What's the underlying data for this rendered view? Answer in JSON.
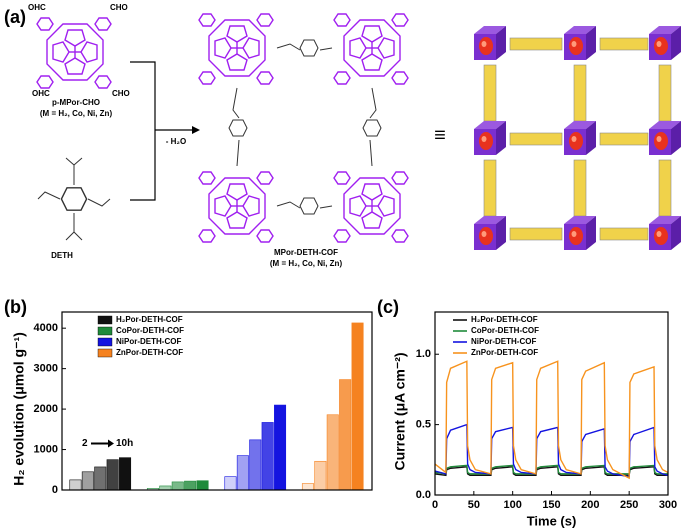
{
  "panel_a": {
    "label": "(a)",
    "monomer_name": "p-MPor-CHO",
    "monomer_metals": "(M = H₂, Co, Ni, Zn)",
    "aldehyde_1": "OHC",
    "aldehyde_2": "CHO",
    "aldehyde_3": "OHC",
    "aldehyde_4": "CHO",
    "linker_name": "DETH",
    "reaction": "- H₂O",
    "product_name": "MPor-DETH-COF",
    "product_metals": "(M = H₂, Co, Ni, Zn)",
    "equivalence": "≡"
  },
  "chart_data": [
    {
      "type": "bar",
      "panel_label": "(b)",
      "y_label": "H₂ evolution (μmol g⁻¹)",
      "ylim": [
        0,
        4400
      ],
      "yticks": [
        0,
        1000,
        2000,
        3000,
        4000
      ],
      "annotation_start": "2",
      "annotation_end": "10h",
      "series": [
        {
          "name": "H₂Por-DETH-COF",
          "color": "#111111",
          "values": [
            250,
            450,
            570,
            750,
            800
          ]
        },
        {
          "name": "CoPor-DETH-COF",
          "color": "#1f8a3a",
          "values": [
            40,
            100,
            200,
            220,
            230
          ]
        },
        {
          "name": "NiPor-DETH-COF",
          "color": "#1414e0",
          "values": [
            330,
            850,
            1240,
            1670,
            2100
          ]
        },
        {
          "name": "ZnPor-DETH-COF",
          "color": "#f58220",
          "values": [
            160,
            710,
            1860,
            2730,
            4130
          ]
        }
      ]
    },
    {
      "type": "line",
      "panel_label": "(c)",
      "x_label": "Time (s)",
      "y_label": "Current (μA cm⁻²)",
      "xlim": [
        0,
        300
      ],
      "xticks": [
        0,
        50,
        100,
        150,
        200,
        250,
        300
      ],
      "ylim": [
        0,
        1.3
      ],
      "yticks": [
        {
          "value": 0,
          "label": "0.0"
        },
        0.5,
        {
          "value": 1,
          "label": "1.0"
        }
      ],
      "x": [
        0,
        14,
        15,
        20,
        41,
        42,
        45,
        52,
        72,
        73,
        78,
        100,
        101,
        104,
        111,
        130,
        131,
        136,
        158,
        159,
        162,
        169,
        188,
        189,
        194,
        218,
        219,
        222,
        229,
        250,
        251,
        256,
        282,
        283,
        286,
        293,
        300
      ],
      "series": [
        {
          "name": "H₂Por-DETH-COF",
          "color": "#111111",
          "values": [
            0.15,
            0.14,
            0.18,
            0.19,
            0.2,
            0.15,
            0.14,
            0.14,
            0.14,
            0.18,
            0.19,
            0.2,
            0.15,
            0.14,
            0.14,
            0.14,
            0.18,
            0.19,
            0.2,
            0.15,
            0.14,
            0.14,
            0.14,
            0.18,
            0.19,
            0.2,
            0.15,
            0.14,
            0.14,
            0.14,
            0.18,
            0.19,
            0.2,
            0.15,
            0.14,
            0.14,
            0.14
          ]
        },
        {
          "name": "CoPor-DETH-COF",
          "color": "#1f8a3a",
          "values": [
            0.16,
            0.15,
            0.19,
            0.2,
            0.21,
            0.16,
            0.15,
            0.15,
            0.15,
            0.19,
            0.2,
            0.21,
            0.16,
            0.15,
            0.15,
            0.15,
            0.19,
            0.2,
            0.21,
            0.16,
            0.15,
            0.15,
            0.15,
            0.19,
            0.2,
            0.21,
            0.16,
            0.15,
            0.15,
            0.15,
            0.19,
            0.2,
            0.21,
            0.16,
            0.15,
            0.15,
            0.15
          ]
        },
        {
          "name": "NiPor-DETH-COF",
          "color": "#1414e0",
          "values": [
            0.17,
            0.15,
            0.4,
            0.46,
            0.5,
            0.22,
            0.18,
            0.16,
            0.15,
            0.4,
            0.45,
            0.48,
            0.22,
            0.18,
            0.16,
            0.15,
            0.4,
            0.45,
            0.48,
            0.22,
            0.18,
            0.16,
            0.15,
            0.38,
            0.43,
            0.47,
            0.2,
            0.17,
            0.15,
            0.13,
            0.38,
            0.43,
            0.48,
            0.2,
            0.17,
            0.15,
            0.14
          ]
        },
        {
          "name": "ZnPor-DETH-COF",
          "color": "#f7931e",
          "values": [
            0.22,
            0.16,
            0.8,
            0.9,
            0.95,
            0.35,
            0.25,
            0.18,
            0.15,
            0.82,
            0.9,
            0.94,
            0.35,
            0.25,
            0.18,
            0.15,
            0.82,
            0.9,
            0.95,
            0.35,
            0.25,
            0.18,
            0.15,
            0.82,
            0.88,
            0.94,
            0.35,
            0.25,
            0.18,
            0.12,
            0.8,
            0.86,
            0.91,
            0.35,
            0.25,
            0.18,
            0.16
          ]
        }
      ]
    }
  ]
}
